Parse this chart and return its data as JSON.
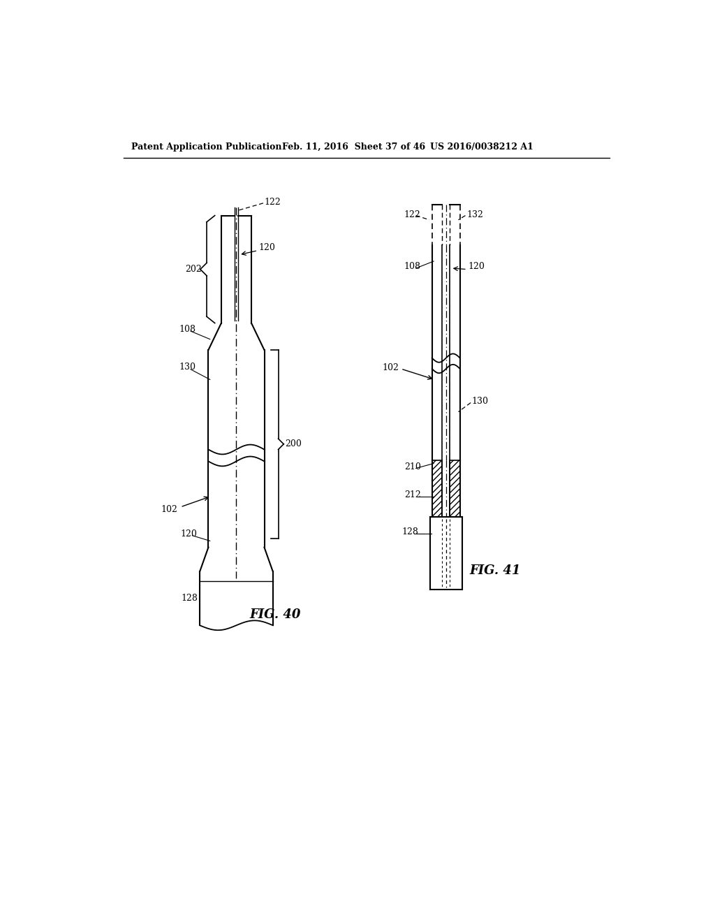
{
  "bg_color": "#ffffff",
  "header_left": "Patent Application Publication",
  "header_mid": "Feb. 11, 2016  Sheet 37 of 46",
  "header_right": "US 2016/0038212 A1",
  "fig40_label": "FIG. 40",
  "fig41_label": "FIG. 41",
  "line_color": "#000000",
  "line_width": 1.5,
  "dash_pattern": [
    4,
    3
  ]
}
